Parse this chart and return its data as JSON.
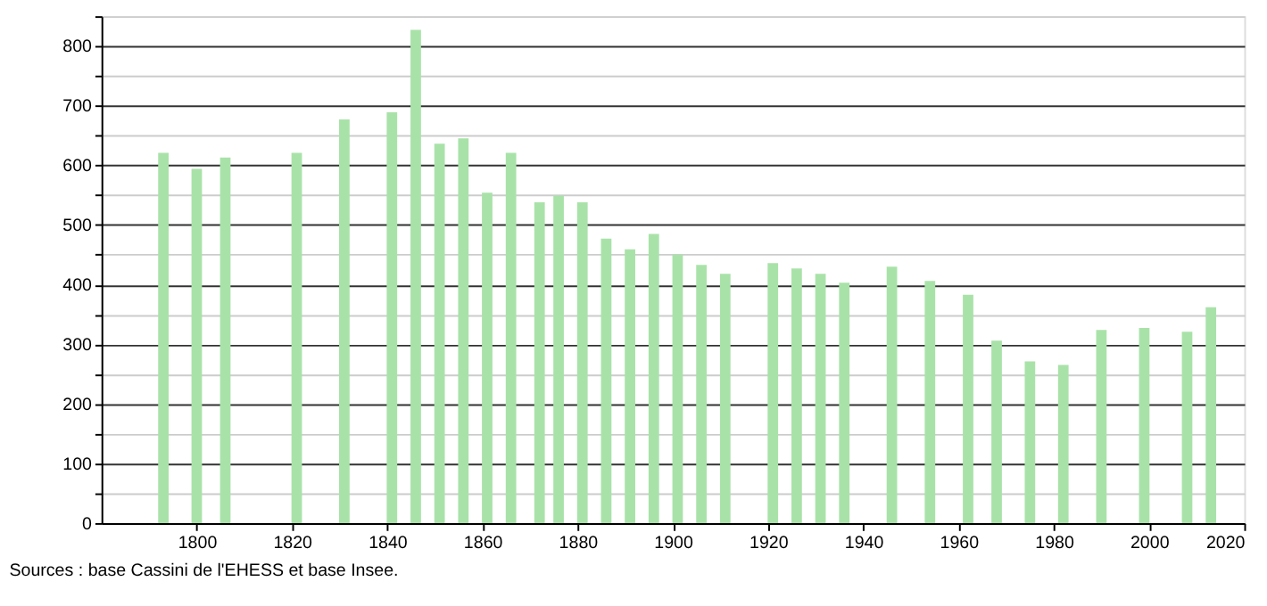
{
  "chart_data": {
    "type": "bar",
    "x": [
      1793,
      1800,
      1806,
      1821,
      1831,
      1841,
      1846,
      1851,
      1856,
      1861,
      1866,
      1872,
      1876,
      1881,
      1886,
      1891,
      1896,
      1901,
      1906,
      1911,
      1921,
      1926,
      1931,
      1936,
      1946,
      1954,
      1962,
      1968,
      1975,
      1982,
      1990,
      1999,
      2008,
      2013
    ],
    "series": [
      {
        "color": "#a9e2a9",
        "values": [
          621,
          594,
          613,
          621,
          677,
          689,
          827,
          636,
          645,
          554,
          621,
          538,
          549,
          538,
          477,
          459,
          485,
          450,
          433,
          418,
          436,
          427,
          418,
          403,
          430,
          406,
          383,
          306,
          271,
          265,
          324,
          327,
          321,
          362
        ]
      }
    ],
    "xlim": [
      1780,
      2020
    ],
    "xticks": [
      1800,
      1820,
      1840,
      1860,
      1880,
      1900,
      1920,
      1940,
      1960,
      1980,
      2000,
      2020
    ],
    "ylim": [
      0,
      850
    ],
    "yticks": [
      0,
      {
        "value": 50,
        "label": null
      },
      100,
      {
        "value": 150,
        "label": null
      },
      200,
      {
        "value": 250,
        "label": null
      },
      300,
      {
        "value": 350,
        "label": null
      },
      400,
      {
        "value": 450,
        "label": null
      },
      500,
      {
        "value": 550,
        "label": null
      },
      600,
      {
        "value": 650,
        "label": null
      },
      700,
      {
        "value": 750,
        "label": null
      },
      800,
      {
        "value": 850,
        "label": null
      }
    ],
    "grid": "y",
    "annotations": [
      "Sources : base Cassini de l'EHESS et base Insee."
    ]
  }
}
